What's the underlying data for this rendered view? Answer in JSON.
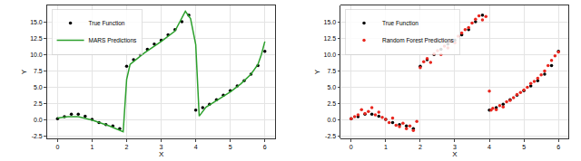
{
  "chart_data": [
    {
      "type": "line",
      "x_label": "X",
      "y_label": "Y",
      "grid": true,
      "legend": "upper left",
      "xlim": [
        -0.3,
        6.3
      ],
      "xticks": [
        0,
        1,
        2,
        3,
        4,
        5,
        6
      ],
      "ylim": [
        -2.8,
        17.5
      ],
      "yticks": [
        {
          "value": -2.5,
          "label": "-2.5"
        },
        {
          "value": 0,
          "label": "0.0"
        },
        {
          "value": 2.5,
          "label": "2.5"
        },
        {
          "value": 5,
          "label": "5.0"
        },
        {
          "value": 7.5,
          "label": "7.5"
        },
        {
          "value": 10,
          "label": "10.0"
        },
        {
          "value": 12.5,
          "label": "12.5"
        },
        {
          "value": 15,
          "label": "15.0"
        }
      ],
      "series": [
        {
          "name": "True Function",
          "type": "scatter",
          "marker": "circle",
          "color": "#000000",
          "x": [
            0,
            0.2,
            0.4,
            0.6,
            0.8,
            1.0,
            1.2,
            1.4,
            1.6,
            1.8,
            2.0,
            2.2,
            2.4,
            2.6,
            2.8,
            3.0,
            3.2,
            3.4,
            3.6,
            3.8,
            4.0,
            4.2,
            4.4,
            4.6,
            4.8,
            5.0,
            5.2,
            5.4,
            5.6,
            5.8,
            6.0
          ],
          "values": [
            0.2,
            0.5,
            0.9,
            0.9,
            0.6,
            0.1,
            -0.4,
            -0.7,
            -0.9,
            -1.3,
            8.2,
            9.2,
            10.0,
            10.8,
            11.6,
            12.2,
            13.0,
            13.8,
            15.0,
            16.0,
            1.5,
            1.9,
            2.4,
            3.1,
            3.8,
            4.5,
            5.2,
            6.0,
            7.0,
            8.3,
            10.5
          ]
        },
        {
          "name": "MARS Predictions",
          "type": "line",
          "line_style": "solid",
          "color": "#2ca02c",
          "x": [
            0,
            0.3,
            0.6,
            1.0,
            1.5,
            1.9,
            2.0,
            2.1,
            2.5,
            3.0,
            3.4,
            3.55,
            3.7,
            3.85,
            4.0,
            4.1,
            4.3,
            4.7,
            5.0,
            5.3,
            5.6,
            5.8,
            5.9,
            6.0
          ],
          "values": [
            0.3,
            0.5,
            0.5,
            0.0,
            -0.9,
            -1.8,
            6.2,
            8.5,
            10.2,
            12.0,
            13.6,
            15.0,
            16.6,
            15.5,
            11.5,
            0.6,
            2.0,
            3.3,
            4.3,
            5.5,
            7.0,
            8.5,
            10.0,
            12.0
          ]
        }
      ]
    },
    {
      "type": "scatter",
      "x_label": "X",
      "y_label": "Y",
      "grid": true,
      "legend": "upper left",
      "xlim": [
        -0.3,
        6.3
      ],
      "xticks": [
        0,
        1,
        2,
        3,
        4,
        5,
        6
      ],
      "ylim": [
        -2.8,
        17.5
      ],
      "yticks": [
        {
          "value": -2.5,
          "label": "-2.5"
        },
        {
          "value": 0,
          "label": "0.0"
        },
        {
          "value": 2.5,
          "label": "2.5"
        },
        {
          "value": 5,
          "label": "5.0"
        },
        {
          "value": 7.5,
          "label": "7.5"
        },
        {
          "value": 10,
          "label": "10.0"
        },
        {
          "value": 12.5,
          "label": "12.5"
        },
        {
          "value": 15,
          "label": "15.0"
        }
      ],
      "series": [
        {
          "name": "True Function",
          "type": "scatter",
          "marker": "circle",
          "color": "#000000",
          "x": [
            0,
            0.2,
            0.4,
            0.6,
            0.8,
            1.0,
            1.2,
            1.4,
            1.6,
            1.8,
            2.0,
            2.2,
            2.4,
            2.6,
            2.8,
            3.0,
            3.2,
            3.4,
            3.6,
            3.8,
            4.0,
            4.2,
            4.4,
            4.6,
            4.8,
            5.0,
            5.2,
            5.4,
            5.6,
            5.8,
            6.0
          ],
          "values": [
            0.2,
            0.5,
            0.9,
            0.9,
            0.6,
            0.1,
            -0.4,
            -0.7,
            -0.9,
            -1.3,
            8.2,
            9.2,
            10.0,
            10.8,
            11.6,
            12.2,
            13.0,
            13.8,
            15.0,
            16.0,
            1.5,
            1.9,
            2.4,
            3.1,
            3.8,
            4.5,
            5.2,
            6.0,
            7.0,
            8.3,
            10.5
          ]
        },
        {
          "name": "Random Forest Predictions",
          "type": "scatter",
          "marker": "circle",
          "color": "#e8261e",
          "x": [
            0.0,
            0.1,
            0.2,
            0.3,
            0.4,
            0.5,
            0.6,
            0.7,
            0.8,
            0.9,
            1.0,
            1.1,
            1.2,
            1.3,
            1.4,
            1.5,
            1.6,
            1.7,
            1.8,
            1.9,
            2.0,
            2.1,
            2.2,
            2.3,
            2.4,
            2.5,
            2.6,
            2.7,
            2.8,
            2.9,
            3.0,
            3.1,
            3.2,
            3.3,
            3.4,
            3.5,
            3.6,
            3.7,
            3.8,
            3.9,
            4.0,
            4.05,
            4.1,
            4.2,
            4.3,
            4.4,
            4.5,
            4.6,
            4.7,
            4.8,
            4.9,
            5.0,
            5.1,
            5.2,
            5.3,
            5.4,
            5.5,
            5.6,
            5.7,
            5.8,
            5.9,
            6.0
          ],
          "values": [
            0.2,
            0.5,
            0.8,
            1.6,
            1.0,
            1.3,
            1.9,
            0.8,
            1.2,
            0.4,
            0.1,
            -0.4,
            0.3,
            -0.8,
            -1.0,
            -0.5,
            -1.3,
            -0.9,
            -1.6,
            -0.2,
            8.0,
            8.9,
            9.4,
            8.8,
            10.1,
            10.6,
            10.0,
            11.3,
            11.0,
            12.0,
            11.8,
            12.8,
            13.3,
            13.8,
            14.1,
            14.8,
            15.4,
            15.9,
            15.3,
            15.8,
            4.4,
            1.5,
            1.8,
            1.6,
            2.2,
            2.0,
            2.8,
            3.0,
            3.4,
            3.9,
            4.2,
            4.6,
            5.0,
            5.6,
            5.9,
            6.4,
            6.9,
            7.5,
            8.3,
            9.1,
            9.8,
            10.4
          ]
        }
      ]
    }
  ]
}
